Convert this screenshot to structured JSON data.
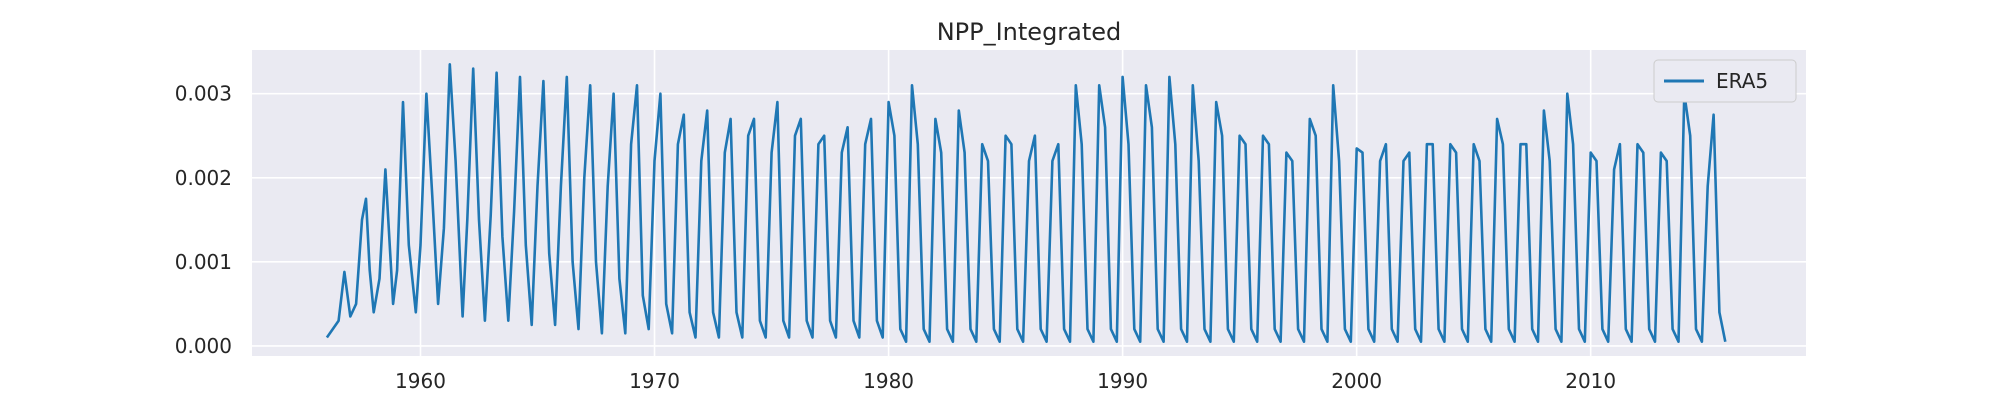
{
  "chart_data": {
    "type": "line",
    "title": "NPP_Integrated",
    "xlabel": "",
    "ylabel": "",
    "xlim": [
      1952.8,
      2019.2
    ],
    "ylim": [
      -0.00012,
      0.00352
    ],
    "x_ticks": [
      1960,
      1970,
      1980,
      1990,
      2000,
      2010
    ],
    "x_tick_labels": [
      "1960",
      "1970",
      "1980",
      "1990",
      "2000",
      "2010"
    ],
    "y_ticks": [
      0.0,
      0.001,
      0.002,
      0.003
    ],
    "y_tick_labels": [
      "0.000",
      "0.001",
      "0.002",
      "0.003"
    ],
    "grid": true,
    "legend_position": "top-right",
    "background": "#eaeaf2",
    "series": [
      {
        "name": "ERA5",
        "color": "#1f77b4",
        "note_sampling": "monthly, Jan 1956 - Dec 2015",
        "x": [
          1956.0,
          1956.5,
          1956.75,
          1957.0,
          1957.25,
          1957.5,
          1957.67,
          1957.83,
          1958.0,
          1958.25,
          1958.5,
          1958.83,
          1959.0,
          1959.25,
          1959.5,
          1959.8,
          1960.0,
          1960.25,
          1960.5,
          1960.75,
          1961.0,
          1961.25,
          1961.5,
          1961.8,
          1962.0,
          1962.25,
          1962.5,
          1962.75,
          1963.0,
          1963.25,
          1963.5,
          1963.75,
          1964.0,
          1964.25,
          1964.5,
          1964.75,
          1965.0,
          1965.25,
          1965.5,
          1965.75,
          1966.0,
          1966.25,
          1966.5,
          1966.75,
          1967.0,
          1967.25,
          1967.5,
          1967.75,
          1968.0,
          1968.25,
          1968.5,
          1968.75,
          1969.0,
          1969.25,
          1969.5,
          1969.75,
          1970.0,
          1970.25,
          1970.5,
          1970.75,
          1971.0,
          1971.25,
          1971.5,
          1971.75,
          1972.0,
          1972.25,
          1972.5,
          1972.75,
          1973.0,
          1973.25,
          1973.5,
          1973.75,
          1974.0,
          1974.25,
          1974.5,
          1974.75,
          1975.0,
          1975.25,
          1975.5,
          1975.75,
          1976.0,
          1976.25,
          1976.5,
          1976.75,
          1977.0,
          1977.25,
          1977.5,
          1977.75,
          1978.0,
          1978.25,
          1978.5,
          1978.75,
          1979.0,
          1979.25,
          1979.5,
          1979.75,
          1980.0,
          1980.25,
          1980.5,
          1980.75,
          1981.0,
          1981.25,
          1981.5,
          1981.75,
          1982.0,
          1982.25,
          1982.5,
          1982.75,
          1983.0,
          1983.25,
          1983.5,
          1983.75,
          1984.0,
          1984.25,
          1984.5,
          1984.75,
          1985.0,
          1985.25,
          1985.5,
          1985.75,
          1986.0,
          1986.25,
          1986.5,
          1986.75,
          1987.0,
          1987.25,
          1987.5,
          1987.75,
          1988.0,
          1988.25,
          1988.5,
          1988.75,
          1989.0,
          1989.25,
          1989.5,
          1989.75,
          1990.0,
          1990.25,
          1990.5,
          1990.75,
          1991.0,
          1991.25,
          1991.5,
          1991.75,
          1992.0,
          1992.25,
          1992.5,
          1992.75,
          1993.0,
          1993.25,
          1993.5,
          1993.75,
          1994.0,
          1994.25,
          1994.5,
          1994.75,
          1995.0,
          1995.25,
          1995.5,
          1995.75,
          1996.0,
          1996.25,
          1996.5,
          1996.75,
          1997.0,
          1997.25,
          1997.5,
          1997.75,
          1998.0,
          1998.25,
          1998.5,
          1998.75,
          1999.0,
          1999.25,
          1999.5,
          1999.75,
          2000.0,
          2000.25,
          2000.5,
          2000.75,
          2001.0,
          2001.25,
          2001.5,
          2001.75,
          2002.0,
          2002.25,
          2002.5,
          2002.75,
          2003.0,
          2003.25,
          2003.5,
          2003.75,
          2004.0,
          2004.25,
          2004.5,
          2004.75,
          2005.0,
          2005.25,
          2005.5,
          2005.75,
          2006.0,
          2006.25,
          2006.5,
          2006.75,
          2007.0,
          2007.25,
          2007.5,
          2007.75,
          2008.0,
          2008.25,
          2008.5,
          2008.75,
          2009.0,
          2009.25,
          2009.5,
          2009.75,
          2010.0,
          2010.25,
          2010.5,
          2010.75,
          2011.0,
          2011.25,
          2011.5,
          2011.75,
          2012.0,
          2012.25,
          2012.5,
          2012.75,
          2013.0,
          2013.25,
          2013.5,
          2013.75,
          2014.0,
          2014.25,
          2014.5,
          2014.75,
          2015.0,
          2015.25,
          2015.5,
          2015.75
        ],
        "y": [
          0.0001,
          0.0003,
          0.00088,
          0.00035,
          0.0005,
          0.0015,
          0.00175,
          0.0009,
          0.0004,
          0.0008,
          0.0021,
          0.0005,
          0.0009,
          0.0029,
          0.0012,
          0.0004,
          0.0012,
          0.003,
          0.0018,
          0.0005,
          0.0014,
          0.00335,
          0.0022,
          0.00035,
          0.0015,
          0.0033,
          0.0015,
          0.0003,
          0.00155,
          0.00325,
          0.0013,
          0.0003,
          0.0016,
          0.0032,
          0.0012,
          0.00025,
          0.0019,
          0.00315,
          0.0011,
          0.00025,
          0.0019,
          0.0032,
          0.001,
          0.0002,
          0.002,
          0.0031,
          0.001,
          0.00015,
          0.0019,
          0.003,
          0.0008,
          0.00015,
          0.0024,
          0.0031,
          0.0006,
          0.0002,
          0.0022,
          0.003,
          0.0005,
          0.00015,
          0.0024,
          0.00275,
          0.0004,
          0.0001,
          0.0022,
          0.0028,
          0.0004,
          0.0001,
          0.0023,
          0.0027,
          0.0004,
          0.0001,
          0.0025,
          0.0027,
          0.0003,
          0.0001,
          0.0023,
          0.0029,
          0.0003,
          0.0001,
          0.0025,
          0.0027,
          0.0003,
          0.0001,
          0.0024,
          0.0025,
          0.0003,
          0.0001,
          0.0023,
          0.0026,
          0.0003,
          0.0001,
          0.0024,
          0.0027,
          0.0003,
          0.0001,
          0.0029,
          0.0025,
          0.0002,
          5e-05,
          0.0031,
          0.0024,
          0.0002,
          5e-05,
          0.0027,
          0.0023,
          0.0002,
          5e-05,
          0.0028,
          0.0023,
          0.0002,
          5e-05,
          0.0024,
          0.0022,
          0.0002,
          5e-05,
          0.0025,
          0.0024,
          0.0002,
          5e-05,
          0.0022,
          0.0025,
          0.0002,
          5e-05,
          0.0022,
          0.0024,
          0.0002,
          5e-05,
          0.0031,
          0.0024,
          0.0002,
          5e-05,
          0.0031,
          0.0026,
          0.0002,
          5e-05,
          0.0032,
          0.0024,
          0.0002,
          5e-05,
          0.0031,
          0.0026,
          0.0002,
          5e-05,
          0.0032,
          0.0024,
          0.0002,
          5e-05,
          0.0031,
          0.0022,
          0.0002,
          5e-05,
          0.0029,
          0.0025,
          0.0002,
          5e-05,
          0.0025,
          0.0024,
          0.0002,
          5e-05,
          0.0025,
          0.0024,
          0.0002,
          5e-05,
          0.0023,
          0.0022,
          0.0002,
          5e-05,
          0.0027,
          0.0025,
          0.0002,
          5e-05,
          0.0031,
          0.0022,
          0.0002,
          5e-05,
          0.00235,
          0.0023,
          0.0002,
          5e-05,
          0.0022,
          0.0024,
          0.0002,
          5e-05,
          0.0022,
          0.0023,
          0.0002,
          5e-05,
          0.0024,
          0.0024,
          0.0002,
          5e-05,
          0.0024,
          0.0023,
          0.0002,
          5e-05,
          0.0024,
          0.0022,
          0.0002,
          5e-05,
          0.0027,
          0.0024,
          0.0002,
          5e-05,
          0.0024,
          0.0024,
          0.0002,
          5e-05,
          0.0028,
          0.0022,
          0.0002,
          5e-05,
          0.003,
          0.0024,
          0.0002,
          5e-05,
          0.0023,
          0.0022,
          0.0002,
          5e-05,
          0.0021,
          0.0024,
          0.0002,
          5e-05,
          0.0024,
          0.0023,
          0.0002,
          5e-05,
          0.0023,
          0.0022,
          0.0002,
          5e-05,
          0.003,
          0.0025,
          0.0002,
          5e-05,
          0.0019,
          0.00275,
          0.0004,
          5e-05
        ]
      }
    ]
  }
}
